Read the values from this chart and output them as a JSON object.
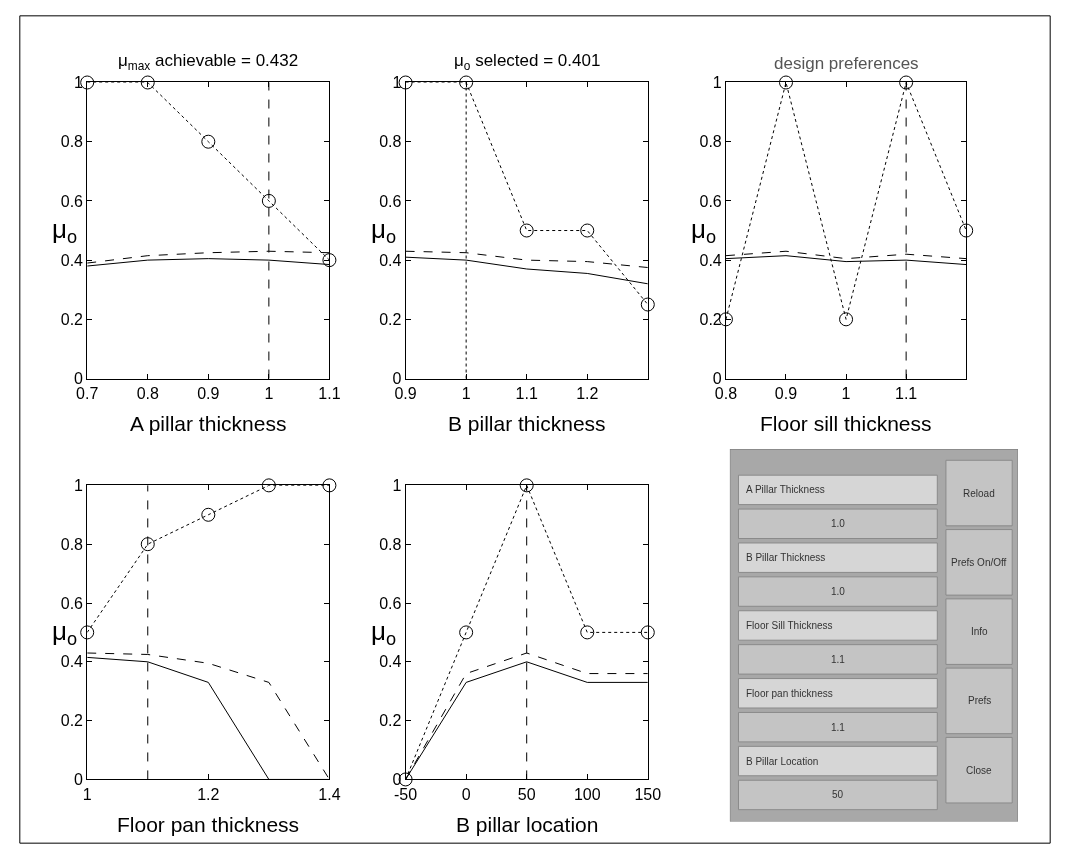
{
  "chart_data": [
    {
      "type": "line",
      "title": "μ$_{max}$ achievable = 0.432",
      "xlabel": "A pillar thickness",
      "ylabel": "μ$_{o}$",
      "x": [
        0.7,
        0.8,
        0.9,
        1.0,
        1.1
      ],
      "xlim": [
        0.7,
        1.1
      ],
      "xticks": [
        0.7,
        0.8,
        0.9,
        1,
        1.1
      ],
      "ylim": [
        0,
        1
      ],
      "yticks": [
        0,
        0.2,
        0.4,
        0.6,
        0.8,
        1
      ],
      "series": [
        {
          "color": "#000000",
          "line_style": "dotted",
          "marker": "circle",
          "values": [
            1,
            1,
            0.8,
            0.6,
            0.4
          ]
        },
        {
          "color": "#000000",
          "line_style": "dashed",
          "marker": "none",
          "values": [
            0.39,
            0.415,
            0.425,
            0.43,
            0.425
          ]
        },
        {
          "color": "#000000",
          "line_style": "solid",
          "marker": "none",
          "values": [
            0.38,
            0.4,
            0.405,
            0.4,
            0.385
          ]
        }
      ],
      "ref_lines": [
        {
          "axis": "x",
          "value": 1.0,
          "color": "#000000",
          "line_style": "dashed"
        }
      ]
    },
    {
      "type": "line",
      "title": "μ$_{o}$ selected = 0.401",
      "xlabel": "B pillar thickness",
      "ylabel": "μ$_{o}$",
      "x": [
        0.9,
        1.0,
        1.1,
        1.2,
        1.3
      ],
      "xlim": [
        0.9,
        1.3
      ],
      "xticks": [
        0.9,
        1,
        1.1,
        1.2
      ],
      "ylim": [
        0,
        1
      ],
      "yticks": [
        0,
        0.2,
        0.4,
        0.6,
        0.8,
        1
      ],
      "series": [
        {
          "color": "#000000",
          "line_style": "dotted",
          "marker": "circle",
          "values": [
            1,
            1,
            0.5,
            0.5,
            0.25
          ]
        },
        {
          "color": "#000000",
          "line_style": "dashed",
          "marker": "none",
          "values": [
            0.43,
            0.425,
            0.4,
            0.395,
            0.375
          ]
        },
        {
          "color": "#000000",
          "line_style": "solid",
          "marker": "none",
          "values": [
            0.41,
            0.4,
            0.37,
            0.355,
            0.32
          ]
        }
      ],
      "ref_lines": [
        {
          "axis": "x",
          "value": 1.0,
          "color": "#000000",
          "line_style": "dotted"
        }
      ]
    },
    {
      "type": "line",
      "title": "design preferences",
      "xlabel": "Floor sill thickness",
      "ylabel": "μ$_{o}$",
      "x": [
        0.8,
        0.9,
        1.0,
        1.1,
        1.2
      ],
      "xlim": [
        0.8,
        1.2
      ],
      "xticks": [
        0.8,
        0.9,
        1,
        1.1
      ],
      "ylim": [
        0,
        1
      ],
      "yticks": [
        0,
        0.2,
        0.4,
        0.6,
        0.8,
        1
      ],
      "series": [
        {
          "color": "#000000",
          "line_style": "dotted",
          "marker": "circle",
          "values": [
            0.2,
            1,
            0.2,
            1,
            0.5
          ]
        },
        {
          "color": "#000000",
          "line_style": "dashed",
          "marker": "none",
          "values": [
            0.415,
            0.43,
            0.405,
            0.42,
            0.405
          ]
        },
        {
          "color": "#000000",
          "line_style": "solid",
          "marker": "none",
          "values": [
            0.405,
            0.415,
            0.395,
            0.4,
            0.385
          ]
        }
      ],
      "ref_lines": [
        {
          "axis": "x",
          "value": 1.1,
          "color": "#000000",
          "line_style": "dashed"
        }
      ]
    },
    {
      "type": "line",
      "xlabel": "Floor pan thickness",
      "ylabel": "μ$_{o}$",
      "x": [
        1.0,
        1.1,
        1.2,
        1.3,
        1.4
      ],
      "xlim": [
        1,
        1.4
      ],
      "xticks": [
        1,
        1.2,
        1.4
      ],
      "ylim": [
        0,
        1
      ],
      "yticks": [
        0,
        0.2,
        0.4,
        0.6,
        0.8,
        1
      ],
      "series": [
        {
          "color": "#000000",
          "line_style": "dotted",
          "marker": "circle",
          "values": [
            0.5,
            0.8,
            0.9,
            1,
            1
          ]
        },
        {
          "color": "#000000",
          "line_style": "dashed",
          "marker": "none",
          "values": [
            0.43,
            0.425,
            0.395,
            0.33,
            0
          ]
        },
        {
          "color": "#000000",
          "line_style": "solid",
          "marker": "none",
          "values": [
            0.415,
            0.4,
            0.33,
            0,
            0
          ]
        }
      ],
      "ref_lines": [
        {
          "axis": "x",
          "value": 1.1,
          "color": "#000000",
          "line_style": "dashed"
        }
      ]
    },
    {
      "type": "line",
      "xlabel": "B pillar location",
      "ylabel": "μ$_{o}$",
      "x": [
        -50,
        0,
        50,
        100,
        150
      ],
      "xlim": [
        -50,
        150
      ],
      "xticks": [
        -50,
        0,
        50,
        100,
        150
      ],
      "ylim": [
        0,
        1
      ],
      "yticks": [
        0,
        0.2,
        0.4,
        0.6,
        0.8,
        1
      ],
      "series": [
        {
          "color": "#000000",
          "line_style": "dotted",
          "marker": "circle",
          "values": [
            0,
            0.5,
            1,
            0.5,
            0.5
          ]
        },
        {
          "color": "#000000",
          "line_style": "dashed",
          "marker": "none",
          "values": [
            0,
            0.36,
            0.43,
            0.36,
            0.36
          ]
        },
        {
          "color": "#000000",
          "line_style": "solid",
          "marker": "none",
          "values": [
            0,
            0.33,
            0.4,
            0.33,
            0.33
          ]
        }
      ],
      "ref_lines": [
        {
          "axis": "x",
          "value": 50,
          "color": "#000000",
          "line_style": "dashed"
        }
      ]
    },
    {
      "type": "other",
      "annotations": [
        "A Pillar Thickness",
        "1.0",
        "B Pillar Thickness",
        "1.0",
        "Floor Sill Thickness",
        "1.1",
        "Floor pan thickness",
        "1.1",
        "B Pillar Location",
        "50",
        "Reload",
        "Prefs On/Off",
        "Info",
        "Prefs",
        "Close"
      ]
    }
  ]
}
